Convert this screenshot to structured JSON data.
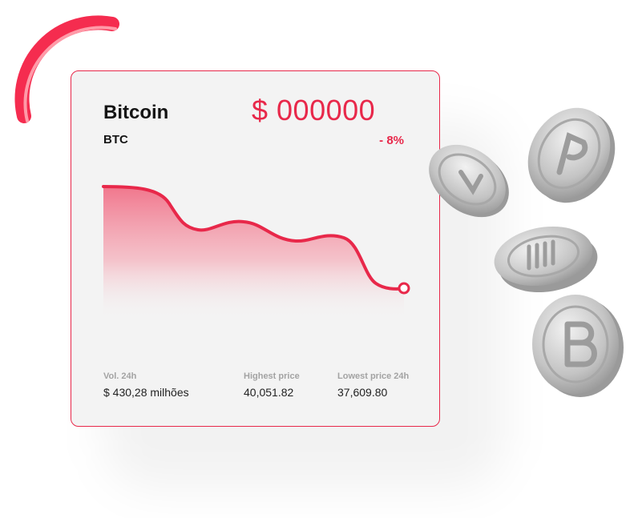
{
  "coin": {
    "name": "Bitcoin",
    "symbol": "BTC",
    "price": "$ 000000",
    "change": "- 8%"
  },
  "stats": [
    {
      "label": "Vol. 24h",
      "value": "$ 430,28 milhões"
    },
    {
      "label": "Highest price",
      "value": "40,051.82"
    },
    {
      "label": "Lowest price 24h",
      "value": "37,609.80"
    }
  ],
  "colors": {
    "accent": "#e8284a",
    "accent_light": "#f48a9a",
    "card_bg": "#f3f3f3",
    "coin_silver": "#c8c8c8"
  },
  "decor": {
    "coin_icons": [
      "ruble-coin-icon",
      "peso-coin-icon",
      "euro-coin-icon",
      "bitcoin-coin-icon"
    ]
  }
}
